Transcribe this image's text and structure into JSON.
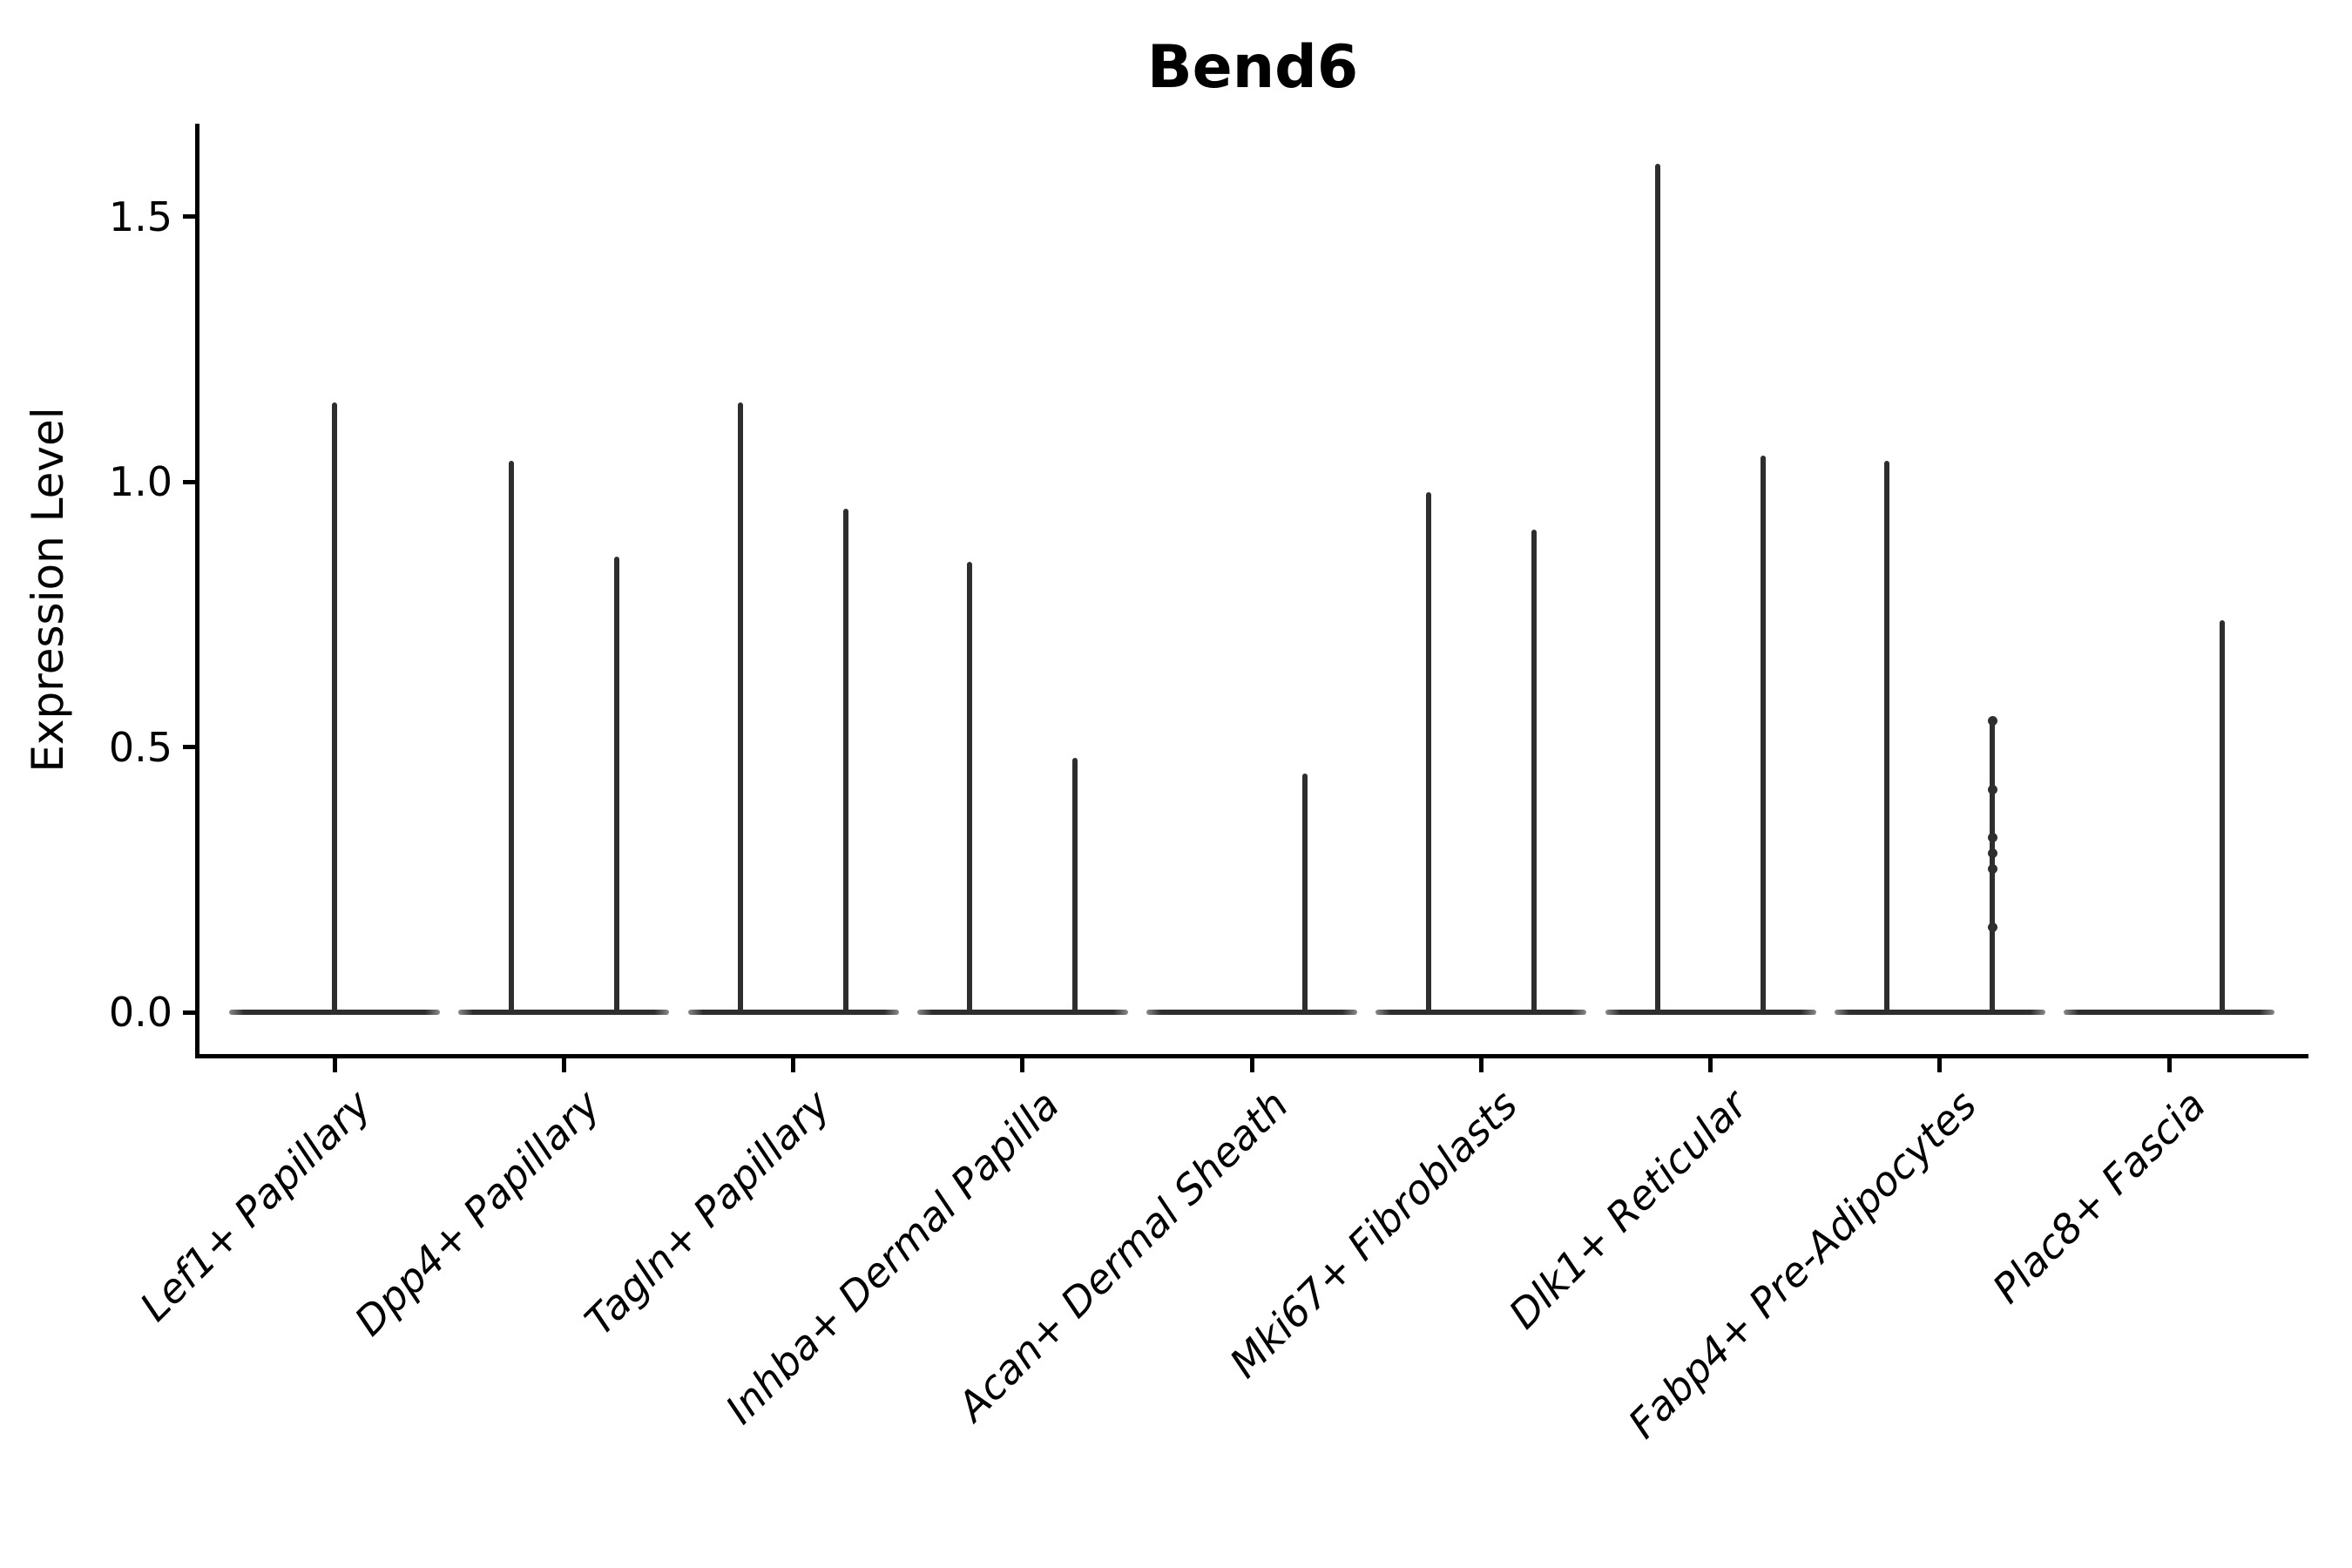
{
  "chart_data": {
    "type": "violin",
    "title": "Bend6",
    "ylabel": "Expression Level",
    "xlabel": "",
    "ytick_labels": [
      "0.0",
      "0.5",
      "1.0",
      "1.5"
    ],
    "ytick_values": [
      0.0,
      0.5,
      1.0,
      1.5
    ],
    "ylim": [
      -0.08,
      1.66
    ],
    "grid": false,
    "legend_position": "none",
    "categories": [
      "Lef1+ Papillary",
      "Dpp4+ Papillary",
      "Tagln+ Papillary",
      "Inhba+ Dermal Papilla",
      "Acan+ Dermal Sheath",
      "Mki67+ Fibroblasts",
      "Dlk1+ Reticular",
      "Fabp4+ Pre-Adipocytes",
      "Plac8+ Fascia"
    ],
    "violins": [
      {
        "category": "Lef1+ Papillary",
        "parts": [
          {
            "pos": "center",
            "max": 1.15
          }
        ]
      },
      {
        "category": "Dpp4+ Papillary",
        "parts": [
          {
            "pos": "left",
            "max": 1.04
          },
          {
            "pos": "right",
            "max": 0.86
          }
        ]
      },
      {
        "category": "Tagln+ Papillary",
        "parts": [
          {
            "pos": "left",
            "max": 1.15
          },
          {
            "pos": "right",
            "max": 0.95
          }
        ]
      },
      {
        "category": "Inhba+ Dermal Papilla",
        "parts": [
          {
            "pos": "left",
            "max": 0.85
          },
          {
            "pos": "right",
            "max": 0.48
          }
        ]
      },
      {
        "category": "Acan+ Dermal Sheath",
        "parts": [
          {
            "pos": "right",
            "max": 0.45
          }
        ]
      },
      {
        "category": "Mki67+ Fibroblasts",
        "parts": [
          {
            "pos": "left",
            "max": 0.98
          },
          {
            "pos": "right",
            "max": 0.91
          }
        ]
      },
      {
        "category": "Dlk1+ Reticular",
        "parts": [
          {
            "pos": "left",
            "max": 1.6
          },
          {
            "pos": "right",
            "max": 1.05
          }
        ]
      },
      {
        "category": "Fabp4+ Pre-Adipocytes",
        "parts": [
          {
            "pos": "left",
            "max": 1.04
          },
          {
            "pos": "right",
            "max": 0.55,
            "points": [
              0.55,
              0.42,
              0.33,
              0.3,
              0.27,
              0.16
            ]
          }
        ]
      },
      {
        "category": "Plac8+ Fascia",
        "parts": [
          {
            "pos": "right",
            "max": 0.74
          }
        ]
      }
    ],
    "colors": {
      "violin": "#2e2e2e",
      "axis": "#000000",
      "text": "#000000",
      "background": "#ffffff"
    }
  }
}
